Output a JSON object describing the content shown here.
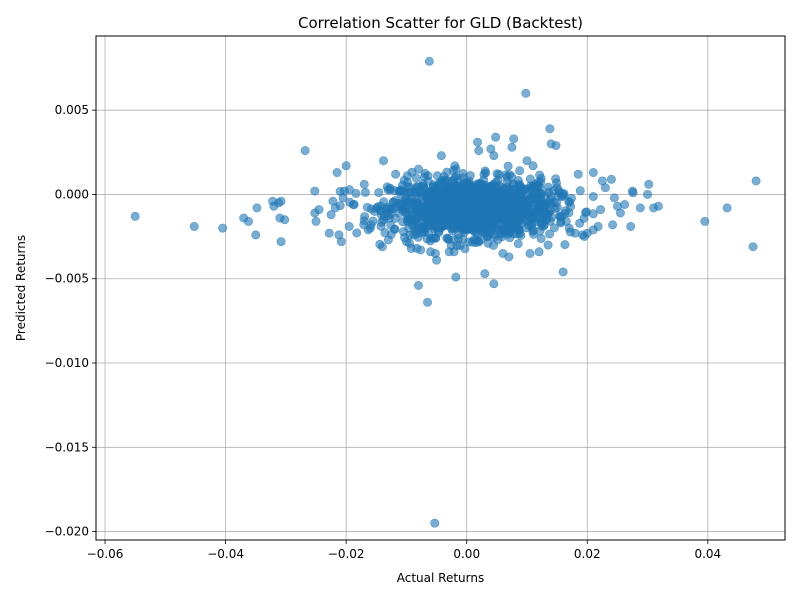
{
  "chart_data": {
    "type": "scatter",
    "title": "Correlation Scatter for GLD (Backtest)",
    "xlabel": "Actual Returns",
    "ylabel": "Predicted Returns",
    "xlim": [
      -0.0615,
      0.0528
    ],
    "ylim": [
      -0.0205,
      0.0094
    ],
    "x_ticks": [
      -0.06,
      -0.04,
      -0.02,
      0.0,
      0.02,
      0.04
    ],
    "x_tick_labels": [
      "−0.06",
      "−0.04",
      "−0.02",
      "0.00",
      "0.02",
      "0.04"
    ],
    "y_ticks": [
      -0.02,
      -0.015,
      -0.01,
      -0.005,
      0.0,
      0.005
    ],
    "y_tick_labels": [
      "−0.020",
      "−0.015",
      "−0.010",
      "−0.005",
      "0.000",
      "0.005"
    ],
    "grid": true,
    "marker_color": "#1f77b4",
    "marker_alpha": 0.6,
    "cluster_center": {
      "x": 0.001,
      "y": -0.0008
    },
    "points": [
      [
        -0.055,
        -0.0013
      ],
      [
        -0.0452,
        -0.0019
      ],
      [
        -0.0405,
        -0.002
      ],
      [
        -0.037,
        -0.0014
      ],
      [
        -0.0362,
        -0.0016
      ],
      [
        -0.035,
        -0.0024
      ],
      [
        -0.0348,
        -0.0008
      ],
      [
        -0.0322,
        -0.0004
      ],
      [
        -0.032,
        -0.0007
      ],
      [
        -0.0312,
        -0.0005
      ],
      [
        -0.0308,
        -0.0004
      ],
      [
        -0.031,
        -0.0014
      ],
      [
        -0.0302,
        -0.0015
      ],
      [
        -0.0308,
        -0.0028
      ],
      [
        -0.0268,
        0.0026
      ],
      [
        -0.0252,
        0.0002
      ],
      [
        -0.0252,
        -0.0011
      ],
      [
        -0.025,
        -0.0016
      ],
      [
        -0.0245,
        -0.0009
      ],
      [
        -0.0228,
        -0.0023
      ],
      [
        -0.0225,
        -0.0012
      ],
      [
        -0.0222,
        -0.0004
      ],
      [
        -0.0218,
        -0.0008
      ],
      [
        -0.0215,
        0.0013
      ],
      [
        -0.0212,
        -0.0024
      ],
      [
        -0.0208,
        -0.0028
      ],
      [
        -0.0205,
        -0.0002
      ],
      [
        -0.0203,
        0.0002
      ],
      [
        -0.02,
        0.0017
      ],
      [
        -0.0195,
        -0.0019
      ],
      [
        -0.0138,
        0.002
      ],
      [
        -0.014,
        -0.0031
      ],
      [
        -0.0118,
        0.0012
      ],
      [
        -0.008,
        0.0015
      ],
      [
        -0.0095,
        -0.0029
      ],
      [
        -0.0092,
        -0.0032
      ],
      [
        -0.0042,
        0.0023
      ],
      [
        -0.0052,
        -0.0035
      ],
      [
        -0.005,
        -0.0039
      ],
      [
        -0.008,
        -0.0054
      ],
      [
        -0.0062,
        0.0079
      ],
      [
        -0.0065,
        -0.0064
      ],
      [
        -0.0018,
        -0.0049
      ],
      [
        -0.0053,
        -0.0195
      ],
      [
        0.0018,
        0.0031
      ],
      [
        0.002,
        0.0026
      ],
      [
        0.004,
        0.0027
      ],
      [
        0.0048,
        0.0034
      ],
      [
        0.0045,
        0.0023
      ],
      [
        0.0075,
        0.0028
      ],
      [
        0.0078,
        0.0033
      ],
      [
        0.0098,
        0.006
      ],
      [
        0.0138,
        0.0039
      ],
      [
        0.014,
        0.003
      ],
      [
        0.0148,
        0.0029
      ],
      [
        0.01,
        0.002
      ],
      [
        0.011,
        0.0017
      ],
      [
        0.003,
        -0.0047
      ],
      [
        0.0045,
        -0.0053
      ],
      [
        0.007,
        -0.0037
      ],
      [
        0.0105,
        -0.0035
      ],
      [
        0.012,
        -0.0034
      ],
      [
        0.0135,
        -0.003
      ],
      [
        0.016,
        -0.0046
      ],
      [
        0.017,
        -0.002
      ],
      [
        0.018,
        -0.0023
      ],
      [
        0.0192,
        -0.0024
      ],
      [
        0.02,
        -0.0023
      ],
      [
        0.021,
        -0.0021
      ],
      [
        0.0218,
        -0.0019
      ],
      [
        0.0222,
        -0.0009
      ],
      [
        0.0225,
        0.0008
      ],
      [
        0.023,
        0.0004
      ],
      [
        0.024,
        0.0009
      ],
      [
        0.0245,
        -0.0002
      ],
      [
        0.025,
        -0.0007
      ],
      [
        0.0255,
        -0.0011
      ],
      [
        0.0262,
        -0.0006
      ],
      [
        0.0272,
        -0.0019
      ],
      [
        0.0275,
        0.0002
      ],
      [
        0.0276,
        0.0001
      ],
      [
        0.0288,
        -0.0008
      ],
      [
        0.03,
        0.0
      ],
      [
        0.0302,
        0.0006
      ],
      [
        0.031,
        -0.0008
      ],
      [
        0.0318,
        -0.0007
      ],
      [
        0.0395,
        -0.0016
      ],
      [
        0.0432,
        -0.0008
      ],
      [
        0.0475,
        -0.0031
      ],
      [
        0.048,
        0.0008
      ],
      [
        0.0242,
        -0.0018
      ],
      [
        0.021,
        0.0013
      ],
      [
        0.0185,
        0.0012
      ],
      [
        0.015,
        0.0004
      ],
      [
        0.016,
        0.0
      ],
      [
        -0.016,
        -0.002
      ],
      [
        -0.013,
        -0.0027
      ],
      [
        -0.017,
        0.0006
      ],
      [
        -0.01,
        -0.0028
      ],
      [
        0.006,
        -0.0035
      ]
    ]
  }
}
